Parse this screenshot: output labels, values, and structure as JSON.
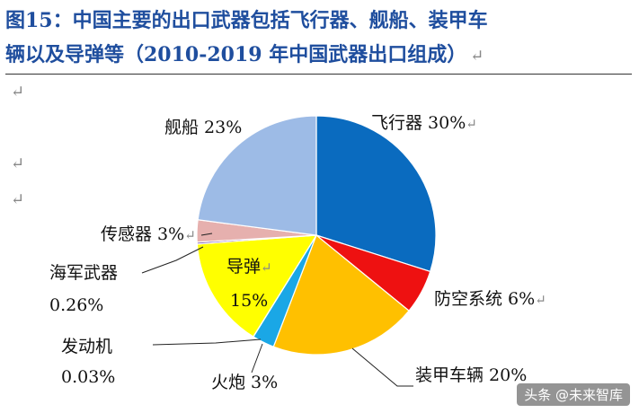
{
  "title": {
    "line1": "图15：中国主要的出口武器包括飞行器、舰船、装甲车",
    "line2": "辆以及导弹等（2010-2019 年中国武器出口组成）"
  },
  "return_mark": "↵",
  "watermark": "头条 @未来智库",
  "chart_data": {
    "type": "pie",
    "start_angle_deg": 0,
    "direction": "clockwise",
    "slices": [
      {
        "label": "飞行器",
        "value": 30,
        "display": "30%",
        "color": "#0a6bbf"
      },
      {
        "label": "防空系统",
        "value": 6,
        "display": "6%",
        "color": "#ee1111"
      },
      {
        "label": "装甲车辆",
        "value": 20,
        "display": "20%",
        "color": "#ffc000"
      },
      {
        "label": "火炮",
        "value": 3,
        "display": "3%",
        "color": "#1aa7e6"
      },
      {
        "label": "发动机",
        "value": 0.03,
        "display": "0.03%",
        "color": "#7a9a3a"
      },
      {
        "label": "导弹",
        "value": 15,
        "display": "15%",
        "color": "#ffff00"
      },
      {
        "label": "海军武器",
        "value": 0.26,
        "display": "0.26%",
        "color": "#6b3fa0"
      },
      {
        "label": "传感器",
        "value": 3,
        "display": "3%",
        "color": "#e6b0ae"
      },
      {
        "label": "舰船",
        "value": 23,
        "display": "23%",
        "color": "#9dbbe6"
      }
    ]
  }
}
